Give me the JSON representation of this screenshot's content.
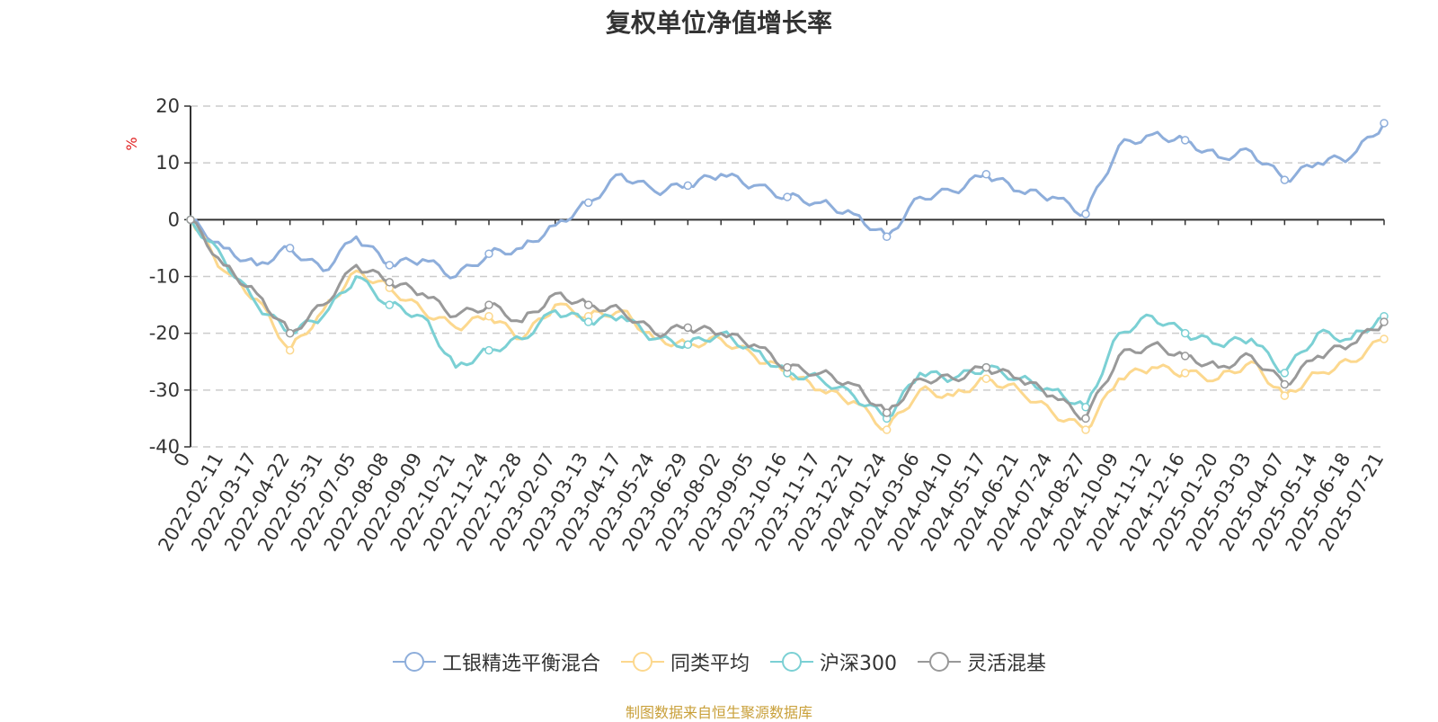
{
  "chart_data": {
    "type": "line",
    "title": "复权单位净值增长率",
    "ylabel": "%",
    "ylim": [
      -40,
      20
    ],
    "yticks": [
      20,
      10,
      0,
      -10,
      -20,
      -30,
      -40
    ],
    "grid": true,
    "legend_position": "bottom",
    "x": [
      "0",
      "2022-02-11",
      "2022-03-17",
      "2022-04-22",
      "2022-05-31",
      "2022-07-05",
      "2022-08-08",
      "2022-09-09",
      "2022-10-21",
      "2022-11-24",
      "2022-12-28",
      "2023-02-07",
      "2023-03-13",
      "2023-04-17",
      "2023-05-24",
      "2023-06-29",
      "2023-08-02",
      "2023-09-05",
      "2023-10-16",
      "2023-11-17",
      "2023-12-21",
      "2024-01-24",
      "2024-03-06",
      "2024-04-10",
      "2024-05-17",
      "2024-06-21",
      "2024-07-24",
      "2024-08-27",
      "2024-10-09",
      "2024-11-12",
      "2024-12-16",
      "2025-01-20",
      "2025-03-03",
      "2025-04-07",
      "2025-05-14",
      "2025-06-18",
      "2025-07-21"
    ],
    "series": [
      {
        "name": "工银精选平衡混合",
        "color": "#8eaedb",
        "values": [
          0,
          -5,
          -8,
          -5,
          -9,
          -3,
          -8,
          -7,
          -10,
          -6,
          -5,
          -1,
          3,
          8,
          5,
          6,
          8,
          6,
          4,
          3,
          1,
          -3,
          4,
          5,
          8,
          5,
          4,
          1,
          13,
          15,
          14,
          11,
          12,
          7,
          10,
          11,
          17
        ]
      },
      {
        "name": "同类平均",
        "color": "#fcd88e",
        "values": [
          0,
          -9,
          -14,
          -23,
          -16,
          -9,
          -12,
          -16,
          -19,
          -17,
          -21,
          -15,
          -17,
          -16,
          -21,
          -22,
          -21,
          -24,
          -27,
          -30,
          -32,
          -37,
          -30,
          -31,
          -28,
          -30,
          -34,
          -37,
          -28,
          -26,
          -27,
          -28,
          -25,
          -31,
          -27,
          -25,
          -21
        ]
      },
      {
        "name": "沪深300",
        "color": "#7bd0d4",
        "values": [
          0,
          -7,
          -15,
          -20,
          -17,
          -10,
          -15,
          -17,
          -26,
          -23,
          -21,
          -16,
          -18,
          -17,
          -21,
          -22,
          -20,
          -23,
          -27,
          -28,
          -31,
          -35,
          -27,
          -28,
          -26,
          -28,
          -30,
          -33,
          -20,
          -17,
          -20,
          -22,
          -21,
          -27,
          -20,
          -21,
          -17
        ]
      },
      {
        "name": "灵活混基",
        "color": "#999999",
        "values": [
          0,
          -8,
          -13,
          -20,
          -15,
          -8,
          -11,
          -13,
          -17,
          -15,
          -18,
          -13,
          -15,
          -16,
          -20,
          -19,
          -20,
          -22,
          -26,
          -27,
          -29,
          -34,
          -28,
          -28,
          -26,
          -28,
          -31,
          -35,
          -24,
          -22,
          -24,
          -26,
          -24,
          -29,
          -24,
          -22,
          -18
        ]
      }
    ]
  },
  "source_note": "制图数据来自恒生聚源数据库"
}
